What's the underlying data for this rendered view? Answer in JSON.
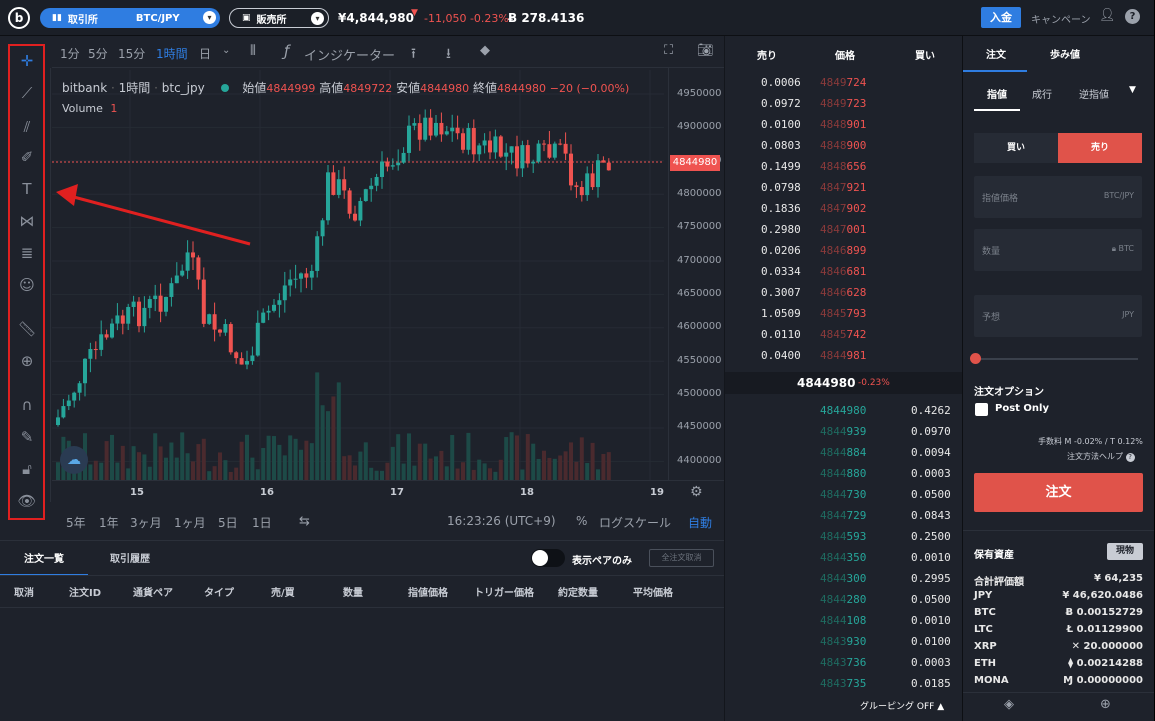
{
  "topbar": {
    "exchange_label": "取引所",
    "pair": "BTC/JPY",
    "store_label": "販売所",
    "price": "¥4,844,980",
    "change": "-11,050 -0.23%",
    "btc_balance": "Ƀ 278.4136",
    "deposit": "入金",
    "campaign": "キャンペーン"
  },
  "toolbar": {
    "tf1": "1分",
    "tf5": "5分",
    "tf15": "15分",
    "tf60": "1時間",
    "tfday": "日",
    "indicator": "インジケーター"
  },
  "legend": {
    "exchange": "bitbank",
    "interval": "1時間",
    "symbol": "btc_jpy",
    "o_label": "始値",
    "o": "4844999",
    "h_label": "高値",
    "h": "4849722",
    "l_label": "安値",
    "l": "4844980",
    "c_label": "終値",
    "c": "4844980",
    "chg": "−20 (−0.00%)",
    "vol_label": "Volume",
    "vol": "1"
  },
  "price_tag": "4844980",
  "yaxis": [
    "4950000",
    "4900000",
    "4850000",
    "4800000",
    "4750000",
    "4700000",
    "4650000",
    "4600000",
    "4550000",
    "4500000",
    "4450000",
    "4400000"
  ],
  "xaxis": [
    "15",
    "16",
    "17",
    "18",
    "19"
  ],
  "bottombar": {
    "r5y": "5年",
    "r1y": "1年",
    "r3m": "3ヶ月",
    "r1m": "1ヶ月",
    "r5d": "5日",
    "r1d": "1日",
    "time": "16:23:26 (UTC+9)",
    "pct": "%",
    "log": "ログスケール",
    "auto": "自動"
  },
  "orders": {
    "tab_list": "注文一覧",
    "tab_history": "取引履歴",
    "pair_only": "表示ペアのみ",
    "cancel_all": "全注文取消",
    "headers": [
      "取消",
      "注文ID",
      "通貨ペア",
      "タイプ",
      "売/買",
      "数量",
      "指値価格",
      "トリガー価格",
      "約定数量",
      "平均価格"
    ]
  },
  "book": {
    "h_sell": "売り",
    "h_price": "価格",
    "h_buy": "買い",
    "mid": "4844980",
    "mid_chg": "-0.23%",
    "grouping": "グルーピング OFF",
    "asks": [
      [
        "0.0006",
        "4849",
        "724"
      ],
      [
        "0.0972",
        "4849",
        "723"
      ],
      [
        "0.0100",
        "4848",
        "901"
      ],
      [
        "0.0803",
        "4848",
        "900"
      ],
      [
        "0.1499",
        "4848",
        "656"
      ],
      [
        "0.0798",
        "4847",
        "921"
      ],
      [
        "0.1836",
        "4847",
        "902"
      ],
      [
        "0.2980",
        "4847",
        "001"
      ],
      [
        "0.0206",
        "4846",
        "899"
      ],
      [
        "0.0334",
        "4846",
        "681"
      ],
      [
        "0.3007",
        "4846",
        "628"
      ],
      [
        "1.0509",
        "4845",
        "793"
      ],
      [
        "0.0110",
        "4845",
        "742"
      ],
      [
        "0.0400",
        "4844",
        "981"
      ]
    ],
    "bids": [
      [
        "4844980",
        "",
        "0.4262"
      ],
      [
        "4844",
        "939",
        "0.0970"
      ],
      [
        "4844",
        "884",
        "0.0094"
      ],
      [
        "4844",
        "880",
        "0.0003"
      ],
      [
        "4844",
        "730",
        "0.0500"
      ],
      [
        "4844",
        "729",
        "0.0843"
      ],
      [
        "4844",
        "593",
        "0.2500"
      ],
      [
        "4844",
        "350",
        "0.0010"
      ],
      [
        "4844",
        "300",
        "0.2995"
      ],
      [
        "4844",
        "280",
        "0.0500"
      ],
      [
        "4844",
        "108",
        "0.0010"
      ],
      [
        "4843",
        "930",
        "0.0100"
      ],
      [
        "4843",
        "736",
        "0.0003"
      ],
      [
        "4843",
        "735",
        "0.0185"
      ]
    ]
  },
  "order": {
    "tab_order": "注文",
    "tab_trades": "歩み値",
    "limit": "指値",
    "market": "成行",
    "stop": "逆指値",
    "buy": "買い",
    "sell": "売り",
    "price_ph": "指値価格",
    "price_unit": "BTC/JPY",
    "qty_ph": "数量",
    "qty_unit": "BTC",
    "est_ph": "予想",
    "est_unit": "JPY",
    "options": "注文オプション",
    "post_only": "Post Only",
    "fee": "手数料 M -0.02% / T 0.12%",
    "help": "注文方法ヘルプ",
    "submit": "注文"
  },
  "assets": {
    "title": "保有資産",
    "spot": "現物",
    "rows": [
      [
        "合計評価額",
        "¥ 64,235"
      ],
      [
        "JPY",
        "¥ 46,620.0486"
      ],
      [
        "BTC",
        "Ƀ 0.00152729"
      ],
      [
        "LTC",
        "Ł 0.01129900"
      ],
      [
        "XRP",
        "✕ 20.000000"
      ],
      [
        "ETH",
        "⧫ 0.00214288"
      ],
      [
        "MONA",
        "Ɱ 0.00000000"
      ]
    ]
  },
  "colors": {
    "up": "#26a69a",
    "down": "#ef5350",
    "accent": "#2f7de1",
    "sell_btn": "#e0534a"
  }
}
